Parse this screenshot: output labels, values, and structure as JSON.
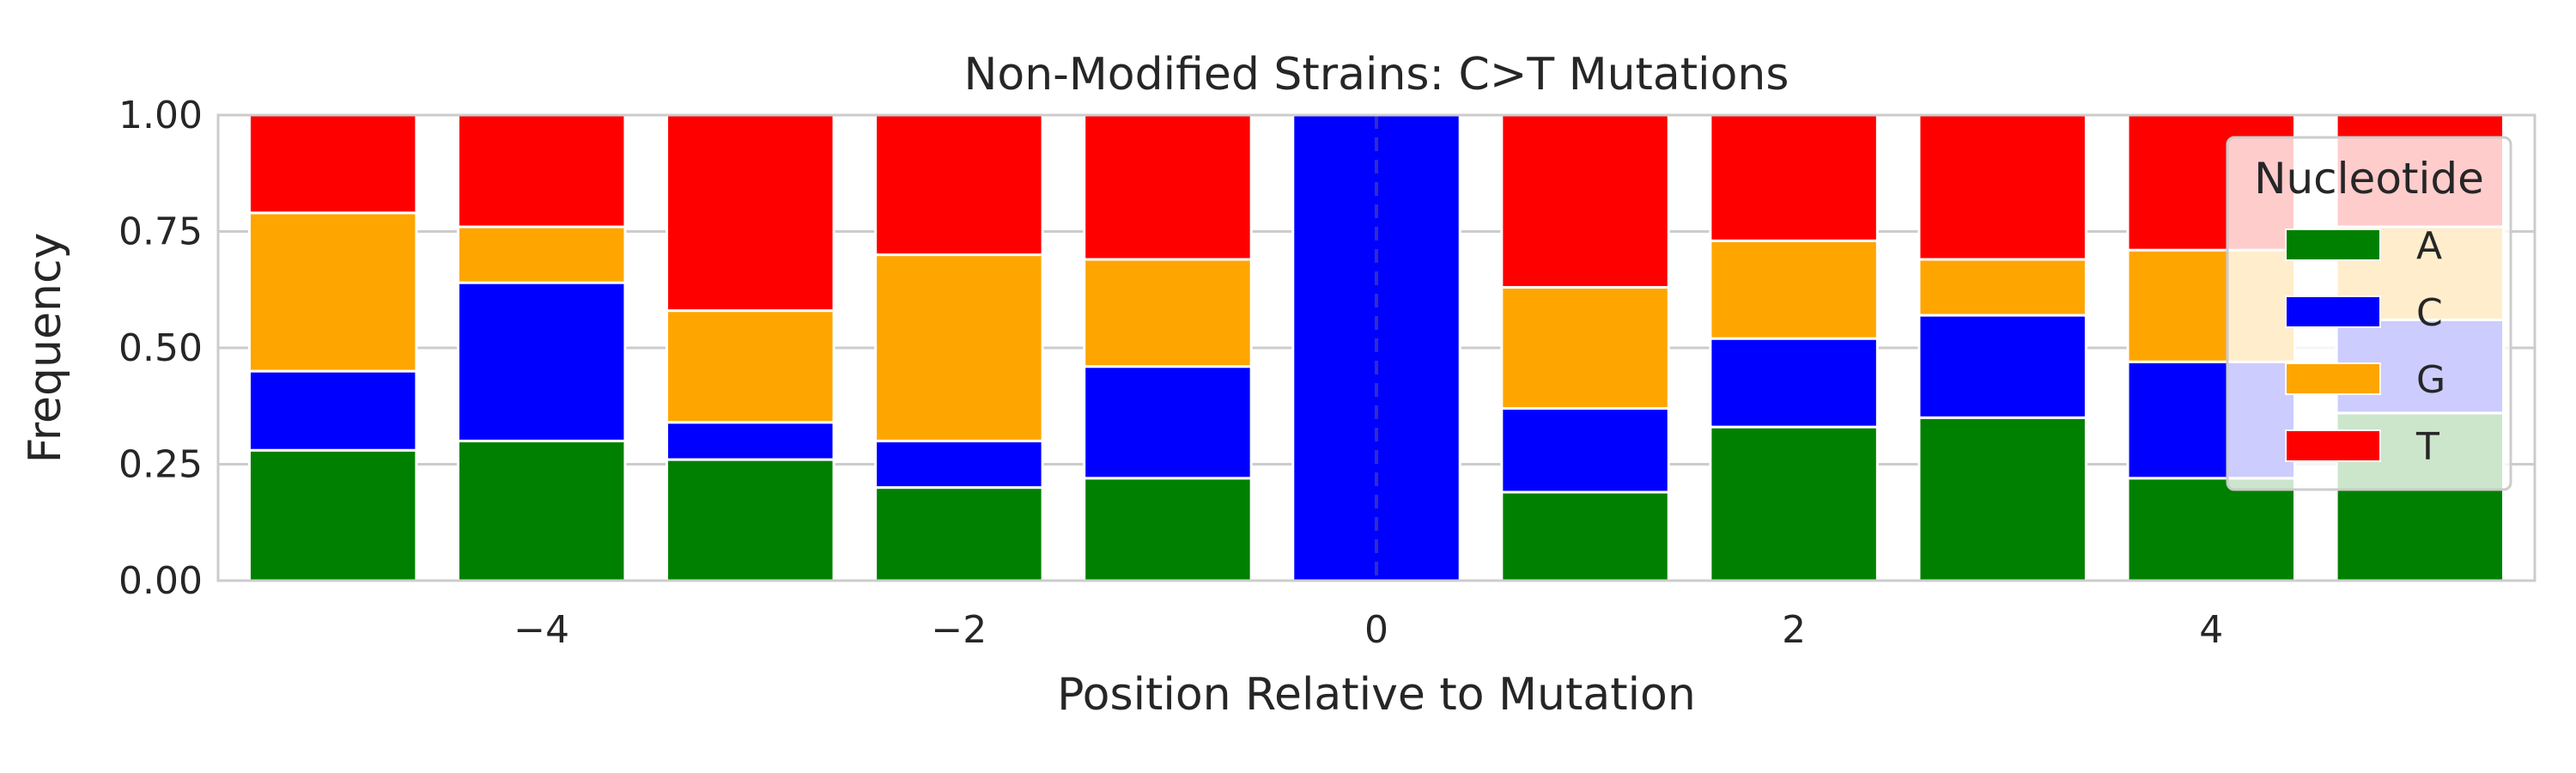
{
  "chart_data": {
    "type": "bar",
    "stacked": true,
    "title": "Non-Modified Strains: C>T Mutations",
    "xlabel": "Position Relative to Mutation",
    "ylabel": "Frequency",
    "x": [
      -5,
      -4,
      -3,
      -2,
      -1,
      0,
      1,
      2,
      3,
      4,
      5
    ],
    "xlim": [
      -5.55,
      5.55
    ],
    "ylim": [
      0,
      1
    ],
    "xticks": [
      -4,
      -2,
      0,
      2,
      4
    ],
    "xtick_labels": [
      "−4",
      "−2",
      "0",
      "2",
      "4"
    ],
    "yticks": [
      0,
      0.25,
      0.5,
      0.75,
      1.0
    ],
    "ytick_labels": [
      "0.00",
      "0.25",
      "0.50",
      "0.75",
      "1.00"
    ],
    "grid": true,
    "reference_line": {
      "x": 0,
      "style": "dashed"
    },
    "legend": {
      "title": "Nucleotide",
      "placement": "upper right"
    },
    "series": [
      {
        "name": "A",
        "color": "#008000",
        "values": [
          0.28,
          0.3,
          0.26,
          0.2,
          0.22,
          0.0,
          0.19,
          0.33,
          0.35,
          0.22,
          0.36
        ]
      },
      {
        "name": "C",
        "color": "#0000ff",
        "values": [
          0.17,
          0.34,
          0.08,
          0.1,
          0.24,
          1.0,
          0.18,
          0.19,
          0.22,
          0.25,
          0.2
        ]
      },
      {
        "name": "G",
        "color": "#ffa500",
        "values": [
          0.34,
          0.12,
          0.24,
          0.4,
          0.23,
          0.0,
          0.26,
          0.21,
          0.12,
          0.24,
          0.2
        ]
      },
      {
        "name": "T",
        "color": "#ff0000",
        "values": [
          0.21,
          0.24,
          0.42,
          0.3,
          0.31,
          0.0,
          0.37,
          0.27,
          0.31,
          0.29,
          0.24
        ]
      }
    ]
  }
}
